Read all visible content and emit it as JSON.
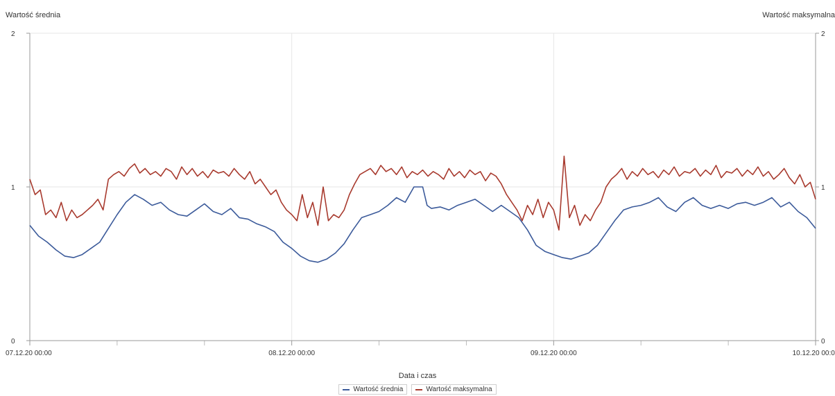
{
  "chart_data": {
    "type": "line",
    "xlabel": "Data i czas",
    "ylabel_left": "Wartość średnia",
    "ylabel_right": "Wartość maksymalna",
    "x_range": [
      "07.12.20 00:00",
      "10.12.20 00:00"
    ],
    "x_tick_labels": [
      "07.12.20 00:00",
      "08.12.20 00:00",
      "09.12.20 00:00",
      "10.12.20 00:00"
    ],
    "x_tick_positions_days": [
      0,
      1,
      2,
      3
    ],
    "x_minor_ticks_days": [
      0.3333,
      0.6667,
      1.3333,
      1.6667,
      2.3333,
      2.6667
    ],
    "ylim_left": [
      0,
      2
    ],
    "ylim_right": [
      0,
      2
    ],
    "y_ticks_left": [
      0,
      1,
      2
    ],
    "y_ticks_right": [
      0,
      1,
      2
    ],
    "grid": true,
    "legend_position": "bottom",
    "series": [
      {
        "name": "Wartość średnia",
        "color": "#3b5a9a",
        "axis": "left",
        "x_days": [
          0,
          0.0333,
          0.0667,
          0.1,
          0.1333,
          0.1667,
          0.2,
          0.2333,
          0.2667,
          0.3,
          0.3333,
          0.3667,
          0.4,
          0.4333,
          0.4667,
          0.5,
          0.5333,
          0.5667,
          0.6,
          0.6333,
          0.6667,
          0.7,
          0.7333,
          0.7667,
          0.8,
          0.8333,
          0.8667,
          0.9,
          0.9333,
          0.9667,
          1.0,
          1.0333,
          1.0667,
          1.1,
          1.1333,
          1.1667,
          1.2,
          1.2333,
          1.2667,
          1.3,
          1.3333,
          1.3667,
          1.4,
          1.4333,
          1.4667,
          1.5,
          1.5167,
          1.5333,
          1.5667,
          1.6,
          1.6333,
          1.6667,
          1.7,
          1.7333,
          1.7667,
          1.8,
          1.8333,
          1.8667,
          1.9,
          1.9333,
          1.9667,
          2.0,
          2.0333,
          2.0667,
          2.1,
          2.1333,
          2.1667,
          2.2,
          2.2333,
          2.2667,
          2.3,
          2.3333,
          2.3667,
          2.4,
          2.4333,
          2.4667,
          2.5,
          2.5333,
          2.5667,
          2.6,
          2.6333,
          2.6667,
          2.7,
          2.7333,
          2.7667,
          2.8,
          2.8333,
          2.8667,
          2.9,
          2.9333,
          2.9667,
          3.0
        ],
        "values": [
          0.75,
          0.68,
          0.64,
          0.59,
          0.55,
          0.54,
          0.56,
          0.6,
          0.64,
          0.73,
          0.82,
          0.9,
          0.95,
          0.92,
          0.88,
          0.9,
          0.85,
          0.82,
          0.81,
          0.85,
          0.89,
          0.84,
          0.82,
          0.86,
          0.8,
          0.79,
          0.76,
          0.74,
          0.71,
          0.64,
          0.6,
          0.55,
          0.52,
          0.51,
          0.53,
          0.57,
          0.63,
          0.72,
          0.8,
          0.82,
          0.84,
          0.88,
          0.93,
          0.9,
          1.0,
          1.0,
          0.88,
          0.86,
          0.87,
          0.85,
          0.88,
          0.9,
          0.92,
          0.88,
          0.84,
          0.88,
          0.84,
          0.8,
          0.72,
          0.62,
          0.58,
          0.56,
          0.54,
          0.53,
          0.55,
          0.57,
          0.62,
          0.7,
          0.78,
          0.85,
          0.87,
          0.88,
          0.9,
          0.93,
          0.87,
          0.84,
          0.9,
          0.93,
          0.88,
          0.86,
          0.88,
          0.86,
          0.89,
          0.9,
          0.88,
          0.9,
          0.93,
          0.87,
          0.9,
          0.84,
          0.8,
          0.73
        ]
      },
      {
        "name": "Wartość maksymalna",
        "color": "#a83a2e",
        "axis": "right",
        "x_days": [
          0,
          0.02,
          0.04,
          0.06,
          0.08,
          0.1,
          0.12,
          0.14,
          0.16,
          0.18,
          0.2,
          0.22,
          0.24,
          0.26,
          0.28,
          0.3,
          0.32,
          0.34,
          0.36,
          0.38,
          0.4,
          0.42,
          0.44,
          0.46,
          0.48,
          0.5,
          0.52,
          0.54,
          0.56,
          0.58,
          0.6,
          0.62,
          0.64,
          0.66,
          0.68,
          0.7,
          0.72,
          0.74,
          0.76,
          0.78,
          0.8,
          0.82,
          0.84,
          0.86,
          0.88,
          0.9,
          0.92,
          0.94,
          0.96,
          0.98,
          1.0,
          1.02,
          1.04,
          1.06,
          1.08,
          1.1,
          1.12,
          1.14,
          1.16,
          1.18,
          1.2,
          1.22,
          1.24,
          1.26,
          1.28,
          1.3,
          1.32,
          1.34,
          1.36,
          1.38,
          1.4,
          1.42,
          1.44,
          1.46,
          1.48,
          1.5,
          1.52,
          1.54,
          1.56,
          1.58,
          1.6,
          1.62,
          1.64,
          1.66,
          1.68,
          1.7,
          1.72,
          1.74,
          1.76,
          1.78,
          1.8,
          1.82,
          1.84,
          1.86,
          1.88,
          1.9,
          1.92,
          1.94,
          1.96,
          1.98,
          2.0,
          2.02,
          2.04,
          2.06,
          2.08,
          2.1,
          2.12,
          2.14,
          2.16,
          2.18,
          2.2,
          2.22,
          2.24,
          2.26,
          2.28,
          2.3,
          2.32,
          2.34,
          2.36,
          2.38,
          2.4,
          2.42,
          2.44,
          2.46,
          2.48,
          2.5,
          2.52,
          2.54,
          2.56,
          2.58,
          2.6,
          2.62,
          2.64,
          2.66,
          2.68,
          2.7,
          2.72,
          2.74,
          2.76,
          2.78,
          2.8,
          2.82,
          2.84,
          2.86,
          2.88,
          2.9,
          2.92,
          2.94,
          2.96,
          2.98,
          3.0
        ],
        "values": [
          1.05,
          0.95,
          0.98,
          0.82,
          0.85,
          0.8,
          0.9,
          0.78,
          0.85,
          0.8,
          0.82,
          0.85,
          0.88,
          0.92,
          0.85,
          1.05,
          1.08,
          1.1,
          1.07,
          1.12,
          1.15,
          1.09,
          1.12,
          1.08,
          1.1,
          1.07,
          1.12,
          1.1,
          1.05,
          1.13,
          1.08,
          1.12,
          1.07,
          1.1,
          1.06,
          1.11,
          1.09,
          1.1,
          1.07,
          1.12,
          1.08,
          1.05,
          1.1,
          1.02,
          1.05,
          1.0,
          0.95,
          0.98,
          0.9,
          0.85,
          0.82,
          0.78,
          0.95,
          0.8,
          0.9,
          0.75,
          1.0,
          0.78,
          0.82,
          0.8,
          0.85,
          0.95,
          1.02,
          1.08,
          1.1,
          1.12,
          1.08,
          1.14,
          1.1,
          1.12,
          1.08,
          1.13,
          1.06,
          1.1,
          1.08,
          1.11,
          1.07,
          1.1,
          1.08,
          1.05,
          1.12,
          1.07,
          1.1,
          1.06,
          1.11,
          1.08,
          1.1,
          1.04,
          1.09,
          1.07,
          1.02,
          0.95,
          0.9,
          0.85,
          0.78,
          0.88,
          0.82,
          0.92,
          0.8,
          0.9,
          0.85,
          0.72,
          1.2,
          0.8,
          0.88,
          0.75,
          0.82,
          0.78,
          0.85,
          0.9,
          1.0,
          1.05,
          1.08,
          1.12,
          1.05,
          1.1,
          1.07,
          1.12,
          1.08,
          1.1,
          1.06,
          1.11,
          1.08,
          1.13,
          1.07,
          1.1,
          1.09,
          1.12,
          1.07,
          1.11,
          1.08,
          1.14,
          1.06,
          1.1,
          1.09,
          1.12,
          1.07,
          1.11,
          1.08,
          1.13,
          1.07,
          1.1,
          1.05,
          1.08,
          1.12,
          1.06,
          1.02,
          1.08,
          1.0,
          1.03,
          0.92
        ]
      }
    ]
  }
}
